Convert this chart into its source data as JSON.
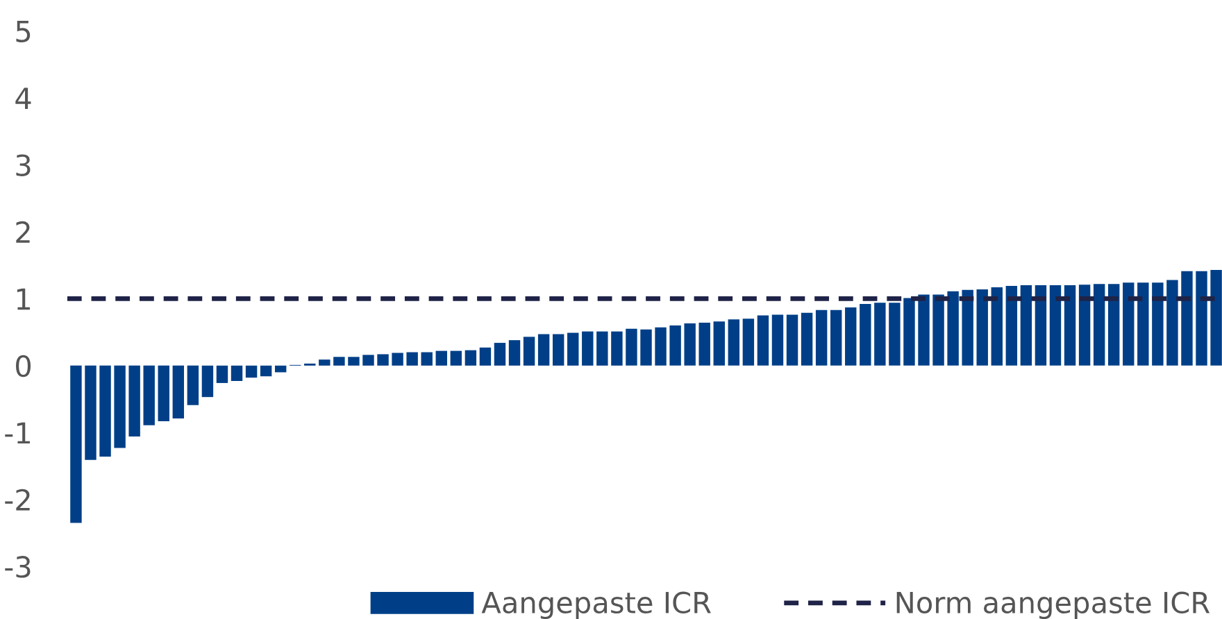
{
  "chart_data": {
    "type": "bar",
    "categories": [
      null,
      null,
      null,
      null,
      null,
      null,
      null,
      null,
      null,
      null,
      null,
      null,
      null,
      null,
      null,
      null,
      null,
      null,
      null,
      null,
      null,
      null,
      null,
      null,
      null,
      null,
      null,
      null,
      null,
      null,
      null,
      null,
      null,
      null,
      null,
      null,
      null,
      null,
      null,
      null,
      null,
      null,
      null,
      null,
      null,
      null,
      null,
      null,
      null,
      null,
      null,
      null,
      null,
      null,
      null,
      null,
      null,
      null,
      null,
      null,
      null,
      null,
      null,
      null,
      null,
      null,
      null,
      null,
      null,
      null,
      null,
      null,
      null,
      null,
      null,
      null,
      null,
      null,
      null
    ],
    "series": [
      {
        "name": "Aangepaste ICR",
        "color": "#003f87",
        "values": [
          -2.35,
          -1.41,
          -1.36,
          -1.23,
          -1.06,
          -0.89,
          -0.83,
          -0.79,
          -0.59,
          -0.47,
          -0.26,
          -0.23,
          -0.18,
          -0.16,
          -0.1,
          0.01,
          0.03,
          0.09,
          0.13,
          0.13,
          0.16,
          0.17,
          0.19,
          0.2,
          0.2,
          0.22,
          0.22,
          0.23,
          0.27,
          0.34,
          0.38,
          0.43,
          0.47,
          0.47,
          0.49,
          0.51,
          0.51,
          0.51,
          0.55,
          0.54,
          0.57,
          0.6,
          0.63,
          0.64,
          0.66,
          0.69,
          0.7,
          0.75,
          0.76,
          0.76,
          0.79,
          0.83,
          0.83,
          0.87,
          0.92,
          0.94,
          0.94,
          1.01,
          1.06,
          1.06,
          1.11,
          1.13,
          1.14,
          1.17,
          1.19,
          1.2,
          1.2,
          1.2,
          1.2,
          1.21,
          1.22,
          1.22,
          1.24,
          1.24,
          1.24,
          1.28,
          1.41,
          1.41,
          1.43
        ]
      }
    ],
    "ref_lines": [
      {
        "axis": "y",
        "value": 1,
        "label": "Norm aangepaste ICR",
        "color": "#1f2347",
        "line_style": "dashed"
      }
    ],
    "ylim": [
      -3,
      5
    ],
    "yticks": [
      -3,
      -2,
      -1,
      0,
      1,
      2,
      3,
      4,
      5
    ],
    "grid": false,
    "legend": "bottom"
  }
}
